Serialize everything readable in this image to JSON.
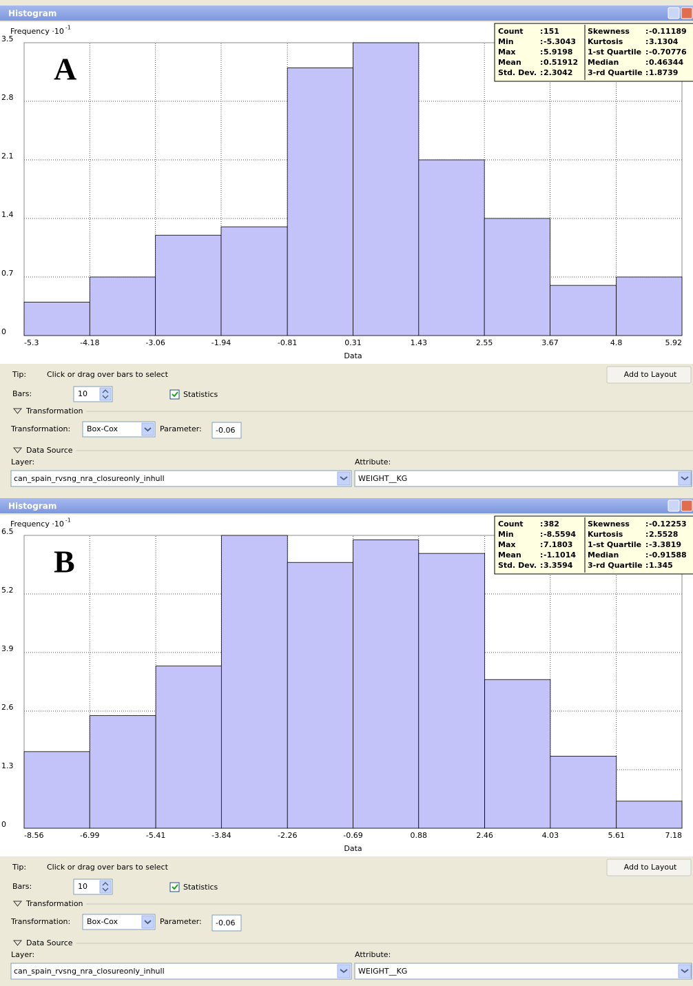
{
  "chart_data": [
    {
      "type": "histogram",
      "title": "Histogram",
      "panel": "A",
      "ylabel": "Frequency ·10",
      "ylabel_exponent": "-1",
      "xlabel": "Data",
      "bins": [
        -5.3,
        -4.18,
        -3.06,
        -1.94,
        -0.81,
        0.31,
        1.43,
        2.55,
        3.67,
        4.8,
        5.92
      ],
      "counts": [
        0.4,
        0.7,
        1.2,
        1.3,
        3.2,
        3.5,
        2.1,
        1.4,
        0.6,
        0.7
      ],
      "color": "#c3c3fa",
      "xlim": [
        -5.3,
        5.92
      ],
      "xticks": [
        -5.3,
        -4.18,
        -3.06,
        -1.94,
        -0.81,
        0.31,
        1.43,
        2.55,
        3.67,
        4.8,
        5.92
      ],
      "ylim": [
        0,
        3.5
      ],
      "yticks": [
        0,
        0.7,
        1.4,
        2.1,
        2.8,
        3.5
      ],
      "grid": true,
      "statistics": [
        {
          "name": "Count",
          "value": 151
        },
        {
          "name": "Min",
          "value": -5.3043
        },
        {
          "name": "Max",
          "value": 5.9198
        },
        {
          "name": "Mean",
          "value": 0.51912
        },
        {
          "name": "Std. Dev.",
          "value": 2.3042
        },
        {
          "name": "Skewness",
          "value": -0.11189
        },
        {
          "name": "Kurtosis",
          "value": 3.1304
        },
        {
          "name": "1-st Quartile",
          "value": -0.70776
        },
        {
          "name": "Median",
          "value": 0.46344
        },
        {
          "name": "3-rd Quartile",
          "value": 1.8739
        }
      ]
    },
    {
      "type": "histogram",
      "title": "Histogram",
      "panel": "B",
      "ylabel": "Frequency ·10",
      "ylabel_exponent": "-1",
      "xlabel": "Data",
      "bins": [
        -8.56,
        -6.99,
        -5.41,
        -3.84,
        -2.26,
        -0.69,
        0.88,
        2.46,
        4.03,
        5.61,
        7.18
      ],
      "counts": [
        1.7,
        2.5,
        3.6,
        6.5,
        5.9,
        6.4,
        6.1,
        3.3,
        1.6,
        0.6
      ],
      "color": "#c3c3fa",
      "xlim": [
        -8.56,
        7.18
      ],
      "xticks": [
        -8.56,
        -6.99,
        -5.41,
        -3.84,
        -2.26,
        -0.69,
        0.88,
        2.46,
        4.03,
        5.61,
        7.18
      ],
      "ylim": [
        0,
        6.5
      ],
      "yticks": [
        0,
        1.3,
        2.6,
        3.9,
        5.2,
        6.5
      ],
      "grid": true,
      "statistics": [
        {
          "name": "Count",
          "value": 382
        },
        {
          "name": "Min",
          "value": -8.5594
        },
        {
          "name": "Max",
          "value": 7.1803
        },
        {
          "name": "Mean",
          "value": -1.1014
        },
        {
          "name": "Std. Dev.",
          "value": 3.3594
        },
        {
          "name": "Skewness",
          "value": -0.12253
        },
        {
          "name": "Kurtosis",
          "value": 2.5528
        },
        {
          "name": "1-st Quartile",
          "value": -3.3819
        },
        {
          "name": "Median",
          "value": -0.91588
        },
        {
          "name": "3-rd Quartile",
          "value": 1.345
        }
      ]
    }
  ],
  "controls": [
    {
      "tip_label": "Tip:",
      "tip": "Click or drag over bars to select",
      "button": "Add to Layout",
      "bars_label": "Bars:",
      "bars": 10,
      "statistics_label": "Statistics",
      "statistics_checked": true,
      "transformation_section": "Transformation",
      "transformation_label": "Transformation:",
      "transformation": "Box-Cox",
      "parameter_label": "Parameter:",
      "parameter": -0.06,
      "data_source_section": "Data Source",
      "layer_label": "Layer:",
      "layer": "can_spain_rvsng_nra_closureonly_inhull",
      "attribute_label": "Attribute:",
      "attribute": "WEIGHT__KG"
    },
    {
      "tip_label": "Tip:",
      "tip": "Click or drag over bars to select",
      "button": "Add to Layout",
      "bars_label": "Bars:",
      "bars": 10,
      "statistics_label": "Statistics",
      "statistics_checked": true,
      "transformation_section": "Transformation",
      "transformation_label": "Transformation:",
      "transformation": "Box-Cox",
      "parameter_label": "Parameter:",
      "parameter": -0.06,
      "data_source_section": "Data Source",
      "layer_label": "Layer:",
      "layer": "can_spain_rvsng_nra_closureonly_inhull",
      "attribute_label": "Attribute:",
      "attribute": "WEIGHT__KG"
    }
  ]
}
